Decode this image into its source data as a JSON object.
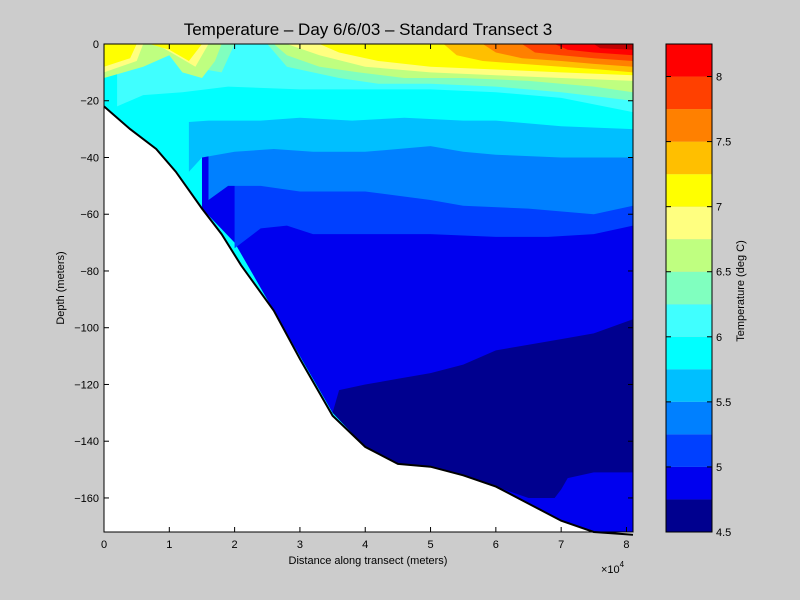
{
  "chart_data": {
    "type": "heatmap",
    "title": "Temperature – Day 6/6/03 – Standard Transect 3",
    "xlabel": "Distance along transect (meters)",
    "ylabel": "Depth (meters)",
    "x_multiplier_label": "×10",
    "x_multiplier_exp": "4",
    "xlim": [
      0,
      8.1
    ],
    "ylim": [
      -172,
      0
    ],
    "x_ticks": [
      "0",
      "1",
      "2",
      "3",
      "4",
      "5",
      "6",
      "7",
      "8"
    ],
    "y_ticks": [
      "0",
      "−20",
      "−40",
      "−60",
      "−80",
      "−100",
      "−120",
      "−140",
      "−160"
    ],
    "colorbar": {
      "label": "Temperature (deg C)",
      "range": [
        4.5,
        8.25
      ],
      "tick_values": [
        4.5,
        5,
        5.5,
        6,
        6.5,
        7,
        7.5,
        8
      ],
      "tick_labels": [
        "4.5",
        "5",
        "5.5",
        "6",
        "6.5",
        "7",
        "7.5",
        "8"
      ],
      "levels": [
        {
          "min": 4.5,
          "max": 4.75,
          "color": "#00008f"
        },
        {
          "min": 4.75,
          "max": 5.0,
          "color": "#0000ef"
        },
        {
          "min": 5.0,
          "max": 5.25,
          "color": "#0040ff"
        },
        {
          "min": 5.25,
          "max": 5.5,
          "color": "#0080ff"
        },
        {
          "min": 5.5,
          "max": 5.75,
          "color": "#00bfff"
        },
        {
          "min": 5.75,
          "max": 6.0,
          "color": "#00ffff"
        },
        {
          "min": 6.0,
          "max": 6.25,
          "color": "#40ffff"
        },
        {
          "min": 6.25,
          "max": 6.5,
          "color": "#80ffbf"
        },
        {
          "min": 6.5,
          "max": 6.75,
          "color": "#bfff80"
        },
        {
          "min": 6.75,
          "max": 7.0,
          "color": "#ffff80"
        },
        {
          "min": 7.0,
          "max": 7.25,
          "color": "#ffff00"
        },
        {
          "min": 7.25,
          "max": 7.5,
          "color": "#ffbf00"
        },
        {
          "min": 7.5,
          "max": 7.75,
          "color": "#ff8000"
        },
        {
          "min": 7.75,
          "max": 8.0,
          "color": "#ff4000"
        },
        {
          "min": 8.0,
          "max": 8.25,
          "color": "#ff0000"
        },
        {
          "min": 8.25,
          "max": 8.5,
          "color": "#bf0000"
        }
      ]
    },
    "bathymetry": [
      [
        0,
        -22
      ],
      [
        0.4,
        -30
      ],
      [
        0.8,
        -37
      ],
      [
        1.1,
        -45
      ],
      [
        1.5,
        -58
      ],
      [
        1.8,
        -67
      ],
      [
        2.1,
        -78
      ],
      [
        2.6,
        -94
      ],
      [
        3.0,
        -111
      ],
      [
        3.5,
        -131
      ],
      [
        4.0,
        -142
      ],
      [
        4.5,
        -148
      ],
      [
        5.0,
        -149
      ],
      [
        5.5,
        -152
      ],
      [
        6.0,
        -156
      ],
      [
        6.5,
        -162
      ],
      [
        7.0,
        -168
      ],
      [
        7.5,
        -172
      ],
      [
        8.1,
        -173
      ]
    ],
    "contour_bands": [
      {
        "color": "#0000ef",
        "lower": [
          [
            1.5,
            -58
          ],
          [
            2.0,
            -70
          ],
          [
            3.0,
            -110
          ],
          [
            3.5,
            -130
          ],
          [
            4.0,
            -142
          ],
          [
            4.5,
            -148
          ],
          [
            5.0,
            -149
          ],
          [
            5.5,
            -152
          ],
          [
            6.0,
            -156
          ],
          [
            6.5,
            -162
          ],
          [
            7.0,
            -168
          ],
          [
            7.5,
            -172
          ],
          [
            8.1,
            -173
          ]
        ]
      },
      {
        "color": "#00008f",
        "upper": [
          [
            3.5,
            -130
          ],
          [
            3.6,
            -122
          ],
          [
            4.0,
            -120
          ],
          [
            4.5,
            -118
          ],
          [
            5.0,
            -116
          ],
          [
            5.5,
            -113
          ],
          [
            6.0,
            -108
          ],
          [
            6.5,
            -106
          ],
          [
            7.0,
            -104
          ],
          [
            7.5,
            -102
          ],
          [
            8.1,
            -97
          ]
        ],
        "lower": [
          [
            3.5,
            -130
          ],
          [
            4.0,
            -142
          ],
          [
            4.5,
            -148
          ],
          [
            5.0,
            -149
          ],
          [
            5.5,
            -152
          ],
          [
            6.0,
            -156
          ],
          [
            6.5,
            -160
          ],
          [
            6.9,
            -160
          ],
          [
            7.0,
            -157
          ],
          [
            7.1,
            -153
          ],
          [
            7.5,
            -151
          ],
          [
            8.1,
            -151
          ]
        ]
      },
      {
        "color": "#0040ff",
        "line": [
          [
            2.0,
            -72
          ],
          [
            2.4,
            -65
          ],
          [
            2.8,
            -64
          ],
          [
            3.2,
            -67
          ],
          [
            4.0,
            -67
          ],
          [
            5.0,
            -67
          ],
          [
            6.0,
            -68
          ],
          [
            6.8,
            -68
          ],
          [
            7.5,
            -67
          ],
          [
            8.1,
            -64
          ]
        ]
      },
      {
        "color": "#0080ff",
        "line": [
          [
            1.6,
            -55
          ],
          [
            1.9,
            -50
          ],
          [
            2.4,
            -50
          ],
          [
            3.0,
            -52
          ],
          [
            4.0,
            -52
          ],
          [
            5.0,
            -55
          ],
          [
            5.5,
            -57
          ],
          [
            6.5,
            -58
          ],
          [
            7.5,
            -60
          ],
          [
            8.1,
            -57
          ]
        ]
      },
      {
        "color": "#00bfff",
        "line": [
          [
            1.3,
            -45
          ],
          [
            1.5,
            -40
          ],
          [
            2.0,
            -38
          ],
          [
            2.6,
            -37
          ],
          [
            3.2,
            -38
          ],
          [
            4.0,
            -38
          ],
          [
            4.5,
            -37
          ],
          [
            5.0,
            -36
          ],
          [
            5.5,
            -38
          ],
          [
            6.0,
            -39
          ],
          [
            7.0,
            -40
          ],
          [
            8.1,
            -40
          ]
        ]
      },
      {
        "color": "#00ffff",
        "line": [
          [
            0.6,
            -33
          ],
          [
            1.0,
            -28
          ],
          [
            1.6,
            -27
          ],
          [
            2.4,
            -27
          ],
          [
            3.0,
            -26
          ],
          [
            3.8,
            -27
          ],
          [
            4.6,
            -26
          ],
          [
            5.5,
            -27
          ],
          [
            6.0,
            -27
          ],
          [
            7.0,
            -29
          ],
          [
            8.1,
            -30
          ]
        ]
      },
      {
        "color": "#40ffff",
        "line": [
          [
            0.2,
            -22
          ],
          [
            0.6,
            -18
          ],
          [
            1.2,
            -17
          ],
          [
            1.9,
            -15
          ],
          [
            3.0,
            -16
          ],
          [
            4.0,
            -16
          ],
          [
            5.0,
            -16
          ],
          [
            6.0,
            -17
          ],
          [
            7.0,
            -19
          ],
          [
            8.1,
            -24
          ]
        ]
      },
      {
        "color": "#80ffbf",
        "line": [
          [
            0.0,
            -10
          ],
          [
            0.3,
            -4
          ],
          [
            0.6,
            0
          ],
          [
            1.0,
            0
          ],
          [
            1.3,
            -8
          ],
          [
            1.8,
            -10
          ],
          [
            2.0,
            0
          ],
          [
            2.5,
            0
          ],
          [
            2.8,
            -8
          ],
          [
            3.6,
            -12
          ],
          [
            4.2,
            -14
          ],
          [
            5.0,
            -14
          ],
          [
            6.0,
            -15
          ],
          [
            7.0,
            -17
          ],
          [
            8.1,
            -20
          ]
        ]
      },
      {
        "color": "#bfff80",
        "line": [
          [
            0.0,
            -12
          ],
          [
            0.6,
            -8
          ],
          [
            1.0,
            -4
          ],
          [
            1.2,
            -10
          ],
          [
            1.5,
            -12
          ],
          [
            1.7,
            -6
          ],
          [
            1.8,
            0
          ],
          [
            2.6,
            0
          ],
          [
            2.8,
            -4
          ],
          [
            3.3,
            -8
          ],
          [
            3.9,
            -10
          ],
          [
            4.6,
            -12
          ],
          [
            5.5,
            -12
          ],
          [
            6.5,
            -13
          ],
          [
            7.5,
            -15
          ],
          [
            8.1,
            -17
          ]
        ]
      },
      {
        "color": "#ffff80",
        "line": [
          [
            0.0,
            -10
          ],
          [
            0.5,
            -6
          ],
          [
            0.6,
            0
          ],
          [
            0.8,
            0
          ],
          [
            1.1,
            -4
          ],
          [
            1.4,
            -8
          ],
          [
            1.6,
            0
          ],
          [
            2.8,
            0
          ],
          [
            3.3,
            -4
          ],
          [
            4.0,
            -8
          ],
          [
            5.0,
            -10
          ],
          [
            6.0,
            -11
          ],
          [
            7.0,
            -12
          ],
          [
            8.1,
            -13
          ]
        ]
      },
      {
        "color": "#ffff00",
        "line": [
          [
            0.0,
            -8
          ],
          [
            0.4,
            -5
          ],
          [
            0.5,
            0
          ],
          [
            0.7,
            0
          ],
          [
            1.0,
            -2
          ],
          [
            1.3,
            -6
          ],
          [
            1.5,
            0
          ],
          [
            3.3,
            0
          ],
          [
            3.6,
            -3
          ],
          [
            4.2,
            -6
          ],
          [
            5.0,
            -8
          ],
          [
            6.0,
            -9
          ],
          [
            7.0,
            -10
          ],
          [
            8.1,
            -11
          ]
        ]
      },
      {
        "color": "#ffbf00",
        "line": [
          [
            5.2,
            0
          ],
          [
            5.4,
            -4
          ],
          [
            5.8,
            -6
          ],
          [
            6.4,
            -7
          ],
          [
            7.0,
            -8
          ],
          [
            7.6,
            -9
          ],
          [
            8.1,
            -10
          ]
        ]
      },
      {
        "color": "#ff8000",
        "line": [
          [
            5.8,
            0
          ],
          [
            6.0,
            -3
          ],
          [
            6.4,
            -5
          ],
          [
            7.0,
            -6
          ],
          [
            7.5,
            -7
          ],
          [
            8.1,
            -8
          ]
        ]
      },
      {
        "color": "#ff4000",
        "line": [
          [
            6.4,
            0
          ],
          [
            6.6,
            -3
          ],
          [
            7.0,
            -4
          ],
          [
            7.5,
            -5
          ],
          [
            8.1,
            -6
          ]
        ]
      },
      {
        "color": "#ff0000",
        "line": [
          [
            6.9,
            0
          ],
          [
            7.1,
            -2
          ],
          [
            7.5,
            -3
          ],
          [
            8.1,
            -4
          ]
        ]
      },
      {
        "color": "#bf0000",
        "line": [
          [
            7.5,
            0
          ],
          [
            7.6,
            -1.5
          ],
          [
            8.1,
            -2
          ]
        ]
      }
    ]
  }
}
